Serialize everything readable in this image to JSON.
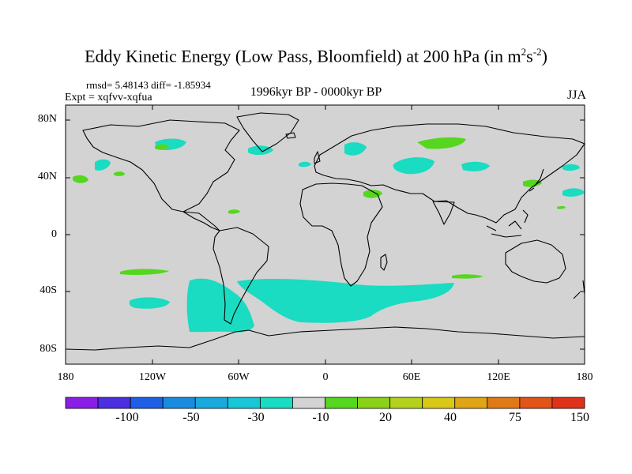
{
  "title": {
    "text": "Eddy Kinetic Energy (Low Pass, Bloomfield) at 200 hPa (in m",
    "sup1": "2",
    "mid": "s",
    "sup2": "-2",
    "end": ")"
  },
  "stats": "rmsd= 5.48143 diff= -1.85934",
  "experiment": "Expt = xqfvv-xqfua",
  "period": "1996kyr BP - 0000kyr BP",
  "season": "JJA",
  "lat_labels": [
    "80N",
    "40N",
    "0",
    "40S",
    "80S"
  ],
  "lon_labels": [
    "180",
    "120W",
    "60W",
    "0",
    "60E",
    "120E",
    "180"
  ],
  "colorbar": {
    "labels": [
      "-100",
      "-50",
      "-30",
      "-10",
      "20",
      "40",
      "75",
      "150"
    ],
    "colors": [
      "#8a1ee6",
      "#4b2fe0",
      "#1e5fe6",
      "#1a8ce0",
      "#19a9dc",
      "#18c6d6",
      "#19dcc2",
      "#d3d3d3",
      "#55d61f",
      "#8bd11a",
      "#b4d21c",
      "#d8c919",
      "#e0a417",
      "#e07a17",
      "#e05417",
      "#e0321a"
    ]
  },
  "colors": {
    "background": "#ffffff",
    "map_fill": "#d3d3d3",
    "negative_fill": "#19dcc2",
    "positive_fill": "#55d61f",
    "coast": "#000000"
  }
}
